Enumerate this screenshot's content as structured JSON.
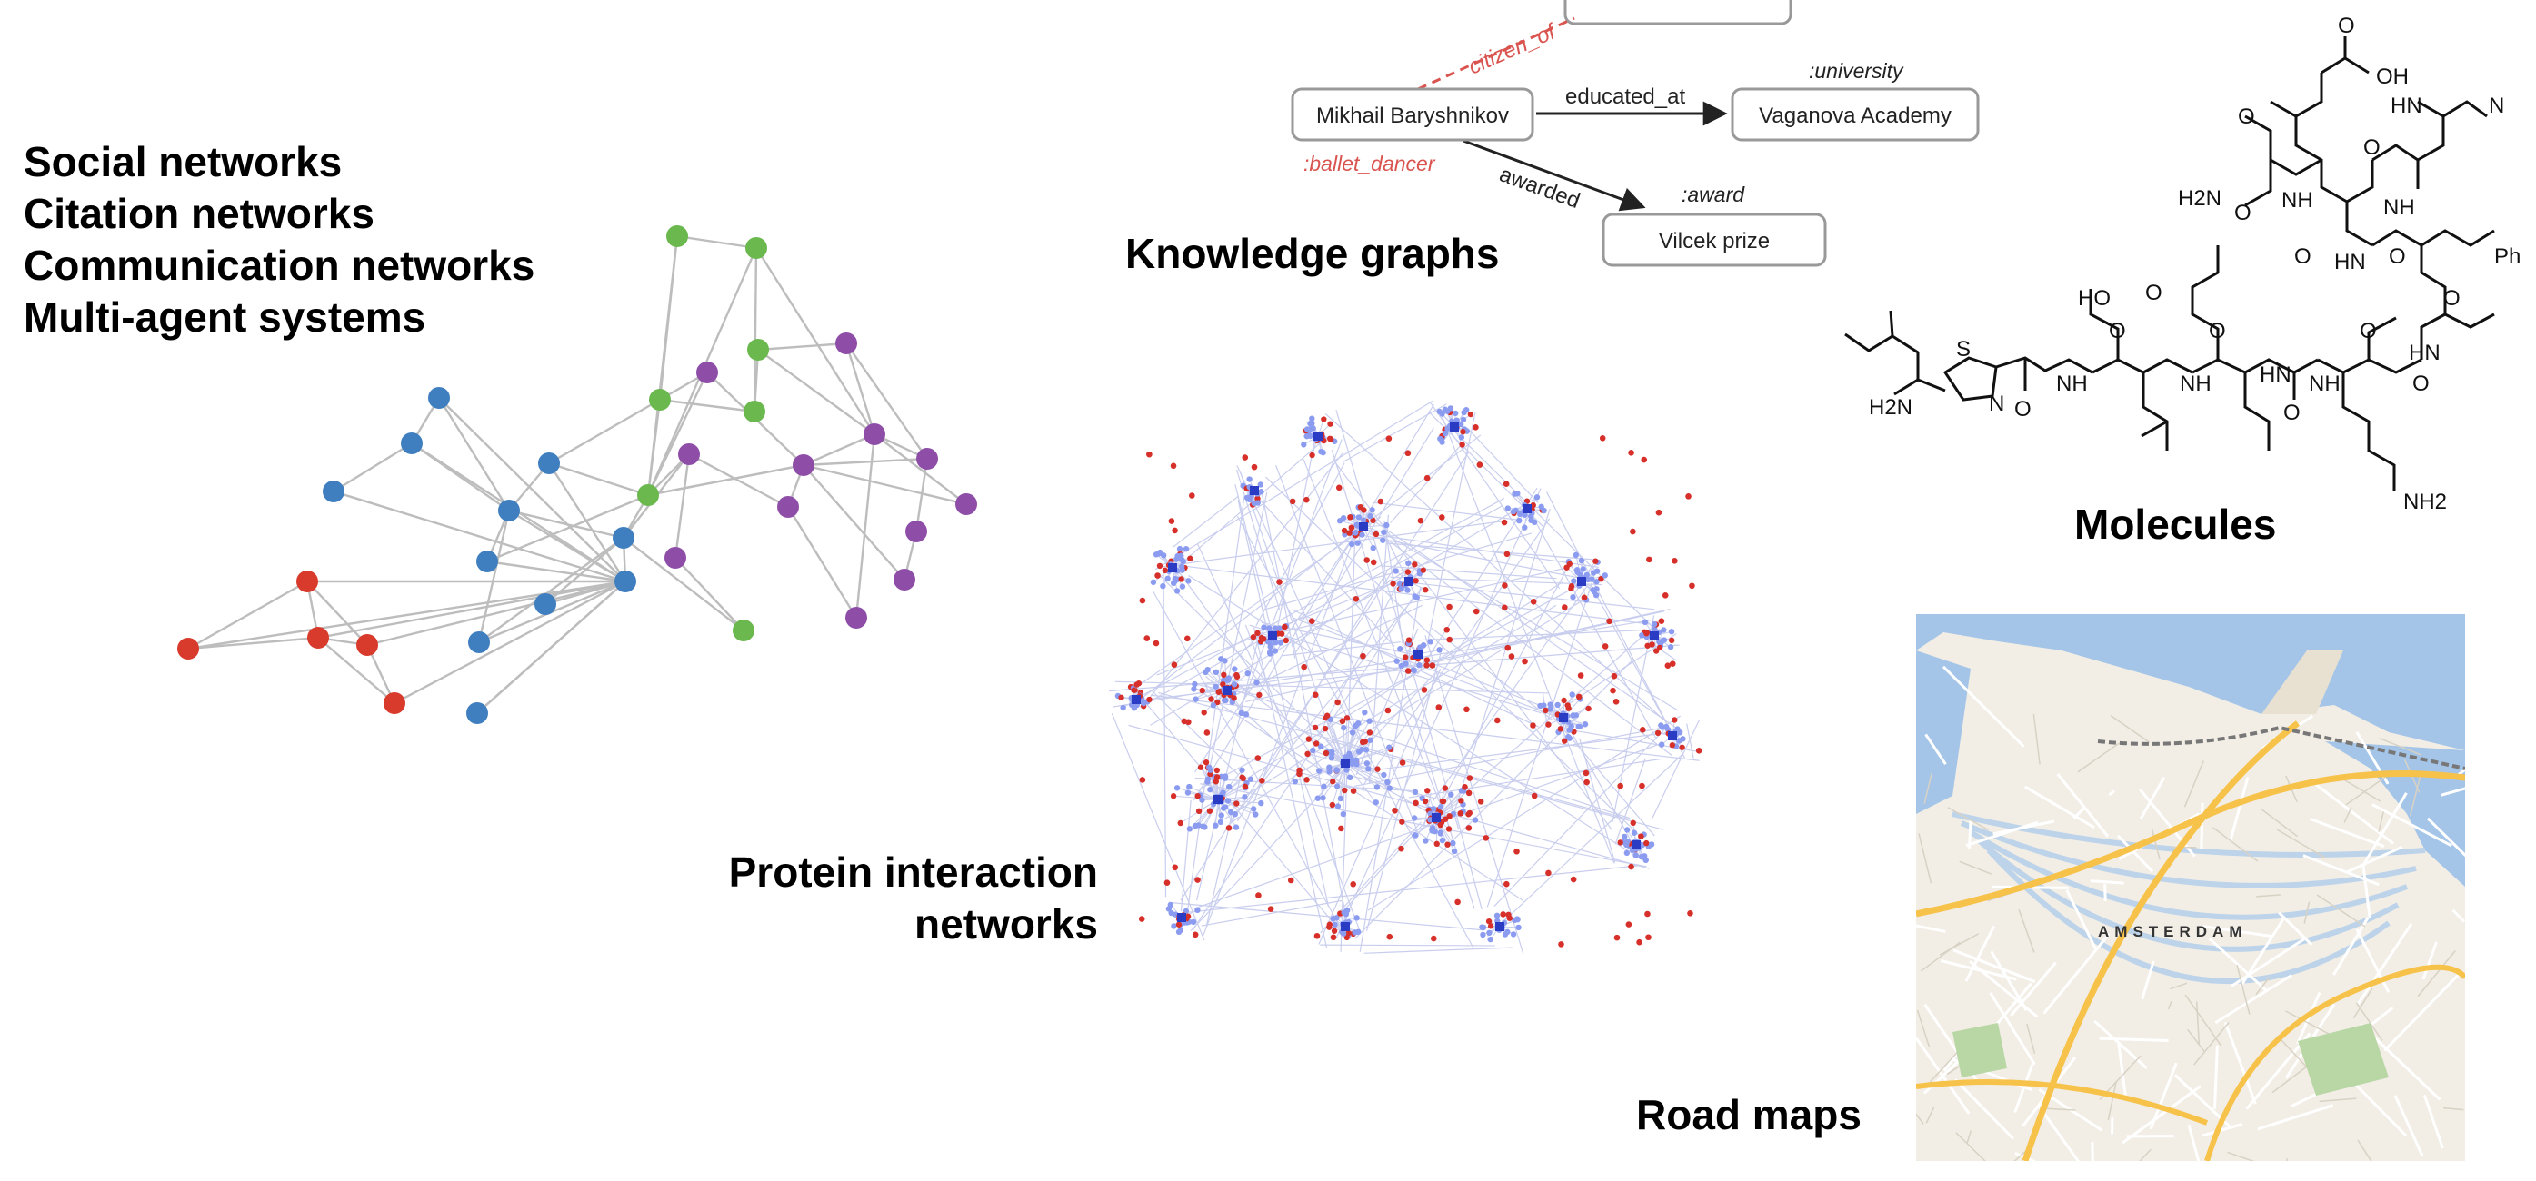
{
  "social": {
    "lines": [
      "Social networks",
      "Citation networks",
      "Communication networks",
      "Multi-agent systems"
    ],
    "colors": {
      "blue": "#3f7fbf",
      "red": "#d83a2b",
      "green": "#6ab84e",
      "purple": "#8e4ea8",
      "edge": "#bdbdbd"
    }
  },
  "kg": {
    "title": "Knowledge graphs",
    "nodes": {
      "person": "Mikhail Baryshnikov",
      "university": "Vaganova Academy",
      "prize": "Vilcek prize"
    },
    "types": {
      "person": ":ballet_dancer",
      "university": ":university",
      "prize": ":award"
    },
    "edges": {
      "citizen": "citizen_of",
      "educated": "educated_at",
      "awarded": "awarded"
    },
    "colors": {
      "red_label": "#d9534f"
    }
  },
  "protein": {
    "title_line1": "Protein interaction",
    "title_line2": "networks",
    "colors": {
      "hub": "#2b3cc4",
      "leaf": "#8b9cf0",
      "red": "#d7302a",
      "edge": "#c9ceee"
    }
  },
  "molecules": {
    "title": "Molecules",
    "labels": [
      "OH",
      "O",
      "HN",
      "N",
      "NH",
      "O",
      "H2N",
      "O",
      "O",
      "NH",
      "O",
      "O",
      "HN",
      "Ph",
      "HO",
      "O",
      "O",
      "HN",
      "S",
      "N",
      "H2N",
      "O",
      "NH",
      "O",
      "NH",
      "O",
      "HN",
      "O",
      "NH",
      "O",
      "O",
      "NH2"
    ]
  },
  "road": {
    "title": "Road maps",
    "city": "AMSTERDAM",
    "colors": {
      "water": "#a4c5e8",
      "land": "#f2eee6",
      "major": "#f6c24a",
      "minor": "#ffffff"
    }
  }
}
